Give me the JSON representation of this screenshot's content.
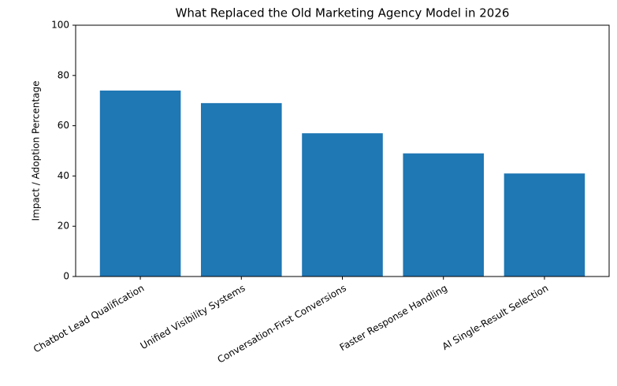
{
  "chart_data": {
    "type": "bar",
    "title": "What Replaced the Old Marketing Agency Model in 2026",
    "y_label": "Impact / Adoption Percentage",
    "categories": [
      "Chatbot Lead Qualification",
      "Unified Visibility Systems",
      "Conversation-First Conversions",
      "Faster Response Handling",
      "AI Single-Result Selection"
    ],
    "values": [
      74,
      69,
      57,
      49,
      41
    ],
    "color": "#1f77b4",
    "ylim": [
      0,
      100
    ],
    "yticks": [
      0,
      20,
      40,
      60,
      80,
      100
    ],
    "grid": false
  }
}
